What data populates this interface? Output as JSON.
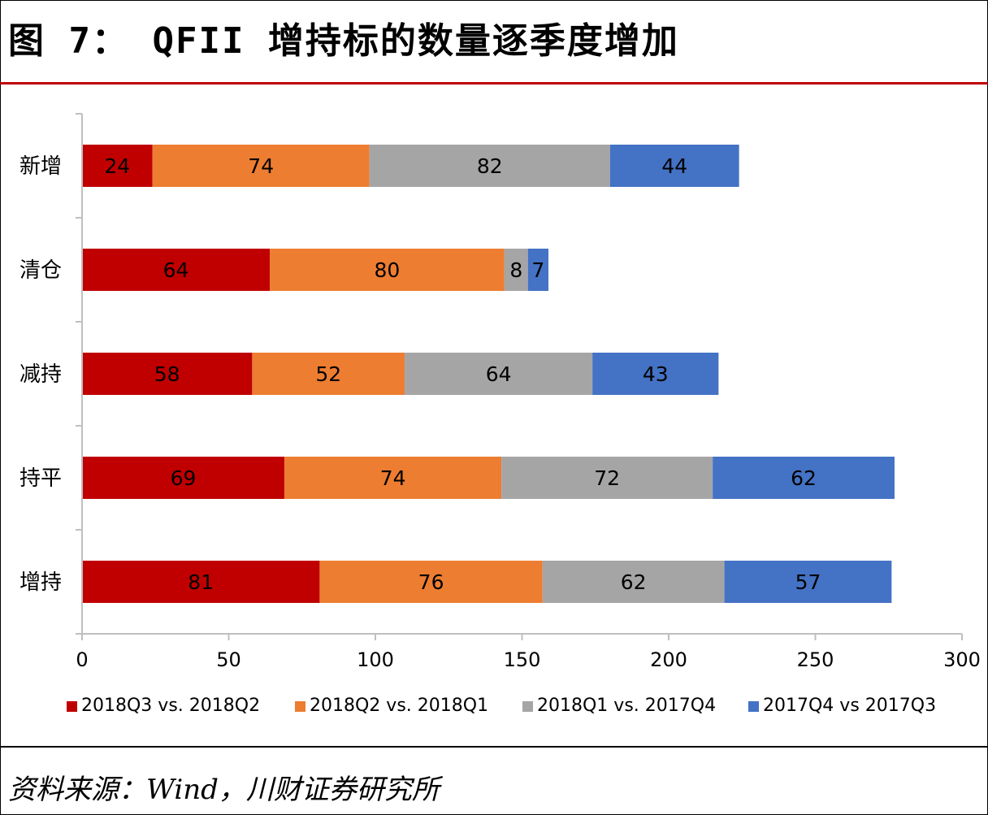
{
  "figure": {
    "title": "图 7：   QFII 增持标的数量逐季度增加",
    "source": "资料来源：Wind，川财证券研究所"
  },
  "colors": {
    "accent_rule": "#c00000",
    "series": [
      "#c00000",
      "#ed7d31",
      "#a5a5a5",
      "#4472c4"
    ]
  },
  "chart_data": {
    "type": "bar",
    "orientation": "horizontal",
    "stacked": true,
    "title": "",
    "xlabel": "",
    "ylabel": "",
    "categories": [
      "新增",
      "清仓",
      "减持",
      "持平",
      "增持"
    ],
    "series": [
      {
        "name": "2018Q3 vs. 2018Q2",
        "values": [
          24,
          64,
          58,
          69,
          81
        ]
      },
      {
        "name": "2018Q2 vs. 2018Q1",
        "values": [
          74,
          80,
          52,
          74,
          76
        ]
      },
      {
        "name": "2018Q1 vs. 2017Q4",
        "values": [
          82,
          8,
          64,
          72,
          62
        ]
      },
      {
        "name": "2017Q4 vs 2017Q3",
        "values": [
          44,
          7,
          43,
          62,
          57
        ]
      }
    ],
    "xlim": [
      0,
      300
    ],
    "xticks": [
      0,
      50,
      100,
      150,
      200,
      250,
      300
    ],
    "grid": false,
    "data_labels": true,
    "legend": "bottom"
  }
}
